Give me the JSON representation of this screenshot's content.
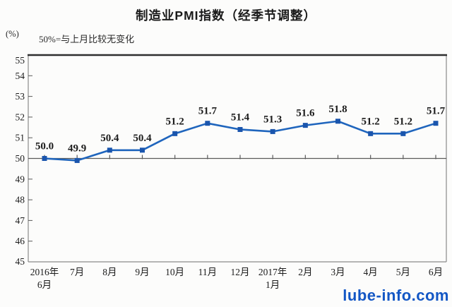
{
  "header": {
    "title": "制造业PMI指数（经季节调整）",
    "y_unit": "(%)",
    "subtitle": "50%=与上月比较无变化"
  },
  "watermark": {
    "text": "lube-info.com",
    "color": "#1357c5"
  },
  "chart_data": {
    "type": "line",
    "title": "制造业PMI指数（经季节调整）",
    "subtitle": "50%=与上月比较无变化",
    "y_unit": "(%)",
    "categories": [
      "2016年\n6月",
      "7月",
      "8月",
      "9月",
      "10月",
      "11月",
      "12月",
      "2017年\n1月",
      "2月",
      "3月",
      "4月",
      "5月",
      "6月"
    ],
    "values": [
      50.0,
      49.9,
      50.4,
      50.4,
      51.2,
      51.7,
      51.4,
      51.3,
      51.6,
      51.8,
      51.2,
      51.2,
      51.7
    ],
    "labels": [
      "50.0",
      "49.9",
      "50.4",
      "50.4",
      "51.2",
      "51.7",
      "51.4",
      "51.3",
      "51.6",
      "51.8",
      "51.2",
      "51.2",
      "51.7"
    ],
    "ylim": [
      45,
      55
    ],
    "ytick_step": 1,
    "reference_line": 50,
    "grid": false,
    "legend": "none",
    "colors": {
      "line": "#1f65bd",
      "marker": "#1a55ad",
      "axis": "#8a8a8a",
      "axis_top": "#2f2f2f",
      "reference": "#5a5a5a",
      "text": "#1c1c1c"
    }
  }
}
